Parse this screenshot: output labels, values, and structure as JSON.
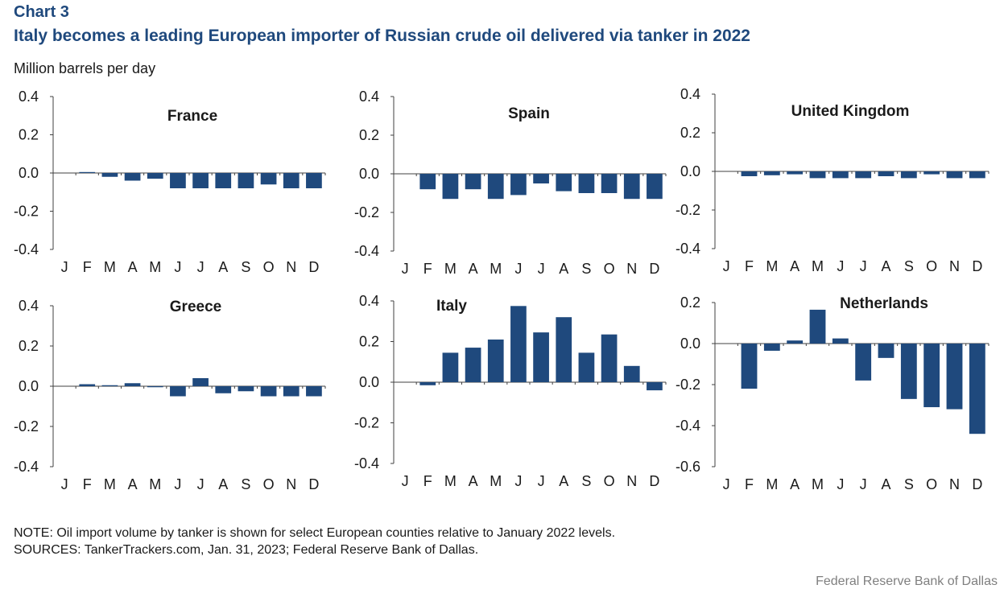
{
  "header": {
    "chart_label": "Chart 3",
    "title": "Italy becomes a leading European importer of Russian crude oil delivered via tanker in 2022",
    "units": "Million barrels per day"
  },
  "footer": {
    "note": "NOTE: Oil import volume by tanker is shown for select European counties relative to January 2022 levels.",
    "sources": "SOURCES: TankerTrackers.com, Jan. 31, 2023; Federal Reserve Bank of Dallas.",
    "credit": "Federal Reserve Bank of Dallas"
  },
  "colors": {
    "bar": "#1f497d",
    "title": "#1f497d",
    "axis": "#404040"
  },
  "chart_data": [
    {
      "type": "bar",
      "title": "France",
      "categories": [
        "J",
        "F",
        "M",
        "A",
        "M",
        "J",
        "J",
        "A",
        "S",
        "O",
        "N",
        "D"
      ],
      "values": [
        0,
        0.005,
        -0.02,
        -0.04,
        -0.03,
        -0.08,
        -0.08,
        -0.08,
        -0.08,
        -0.06,
        -0.08,
        -0.08
      ],
      "ylim": [
        -0.4,
        0.4
      ],
      "yticks": [
        "0.4",
        "0.2",
        "0.0",
        "-0.2",
        "-0.4"
      ]
    },
    {
      "type": "bar",
      "title": "Spain",
      "categories": [
        "J",
        "F",
        "M",
        "A",
        "M",
        "J",
        "J",
        "A",
        "S",
        "O",
        "N",
        "D"
      ],
      "values": [
        0,
        -0.08,
        -0.13,
        -0.08,
        -0.13,
        -0.11,
        -0.05,
        -0.09,
        -0.1,
        -0.1,
        -0.13,
        -0.13
      ],
      "ylim": [
        -0.4,
        0.4
      ],
      "yticks": [
        "0.4",
        "0.2",
        "0.0",
        "-0.2",
        "-0.4"
      ]
    },
    {
      "type": "bar",
      "title": "United Kingdom",
      "categories": [
        "J",
        "F",
        "M",
        "A",
        "M",
        "J",
        "J",
        "A",
        "S",
        "O",
        "N",
        "D"
      ],
      "values": [
        0,
        -0.025,
        -0.02,
        -0.015,
        -0.035,
        -0.035,
        -0.035,
        -0.025,
        -0.035,
        -0.015,
        -0.035,
        -0.035
      ],
      "ylim": [
        -0.4,
        0.4
      ],
      "yticks": [
        "0.4",
        "0.2",
        "0.0",
        "-0.2",
        "-0.4"
      ]
    },
    {
      "type": "bar",
      "title": "Greece",
      "categories": [
        "J",
        "F",
        "M",
        "A",
        "M",
        "J",
        "J",
        "A",
        "S",
        "O",
        "N",
        "D"
      ],
      "values": [
        0,
        0.01,
        0.005,
        0.015,
        -0.005,
        -0.05,
        0.04,
        -0.035,
        -0.025,
        -0.05,
        -0.05,
        -0.05
      ],
      "ylim": [
        -0.4,
        0.4
      ],
      "yticks": [
        "0.4",
        "0.2",
        "0.0",
        "-0.2",
        "-0.4"
      ]
    },
    {
      "type": "bar",
      "title": "Italy",
      "categories": [
        "J",
        "F",
        "M",
        "A",
        "M",
        "J",
        "J",
        "A",
        "S",
        "O",
        "N",
        "D"
      ],
      "values": [
        0,
        -0.015,
        0.145,
        0.17,
        0.21,
        0.375,
        0.245,
        0.32,
        0.145,
        0.235,
        0.08,
        -0.04
      ],
      "ylim": [
        -0.4,
        0.4
      ],
      "yticks": [
        "0.4",
        "0.2",
        "0.0",
        "-0.2",
        "-0.4"
      ]
    },
    {
      "type": "bar",
      "title": "Netherlands",
      "categories": [
        "J",
        "F",
        "M",
        "A",
        "M",
        "J",
        "J",
        "A",
        "S",
        "O",
        "N",
        "D"
      ],
      "values": [
        0,
        -0.22,
        -0.035,
        0.015,
        0.165,
        0.025,
        -0.18,
        -0.07,
        -0.27,
        -0.31,
        -0.32,
        -0.44
      ],
      "ylim": [
        -0.6,
        0.2
      ],
      "yticks": [
        "0.2",
        "0.0",
        "-0.2",
        "-0.4",
        "-0.6"
      ]
    }
  ]
}
